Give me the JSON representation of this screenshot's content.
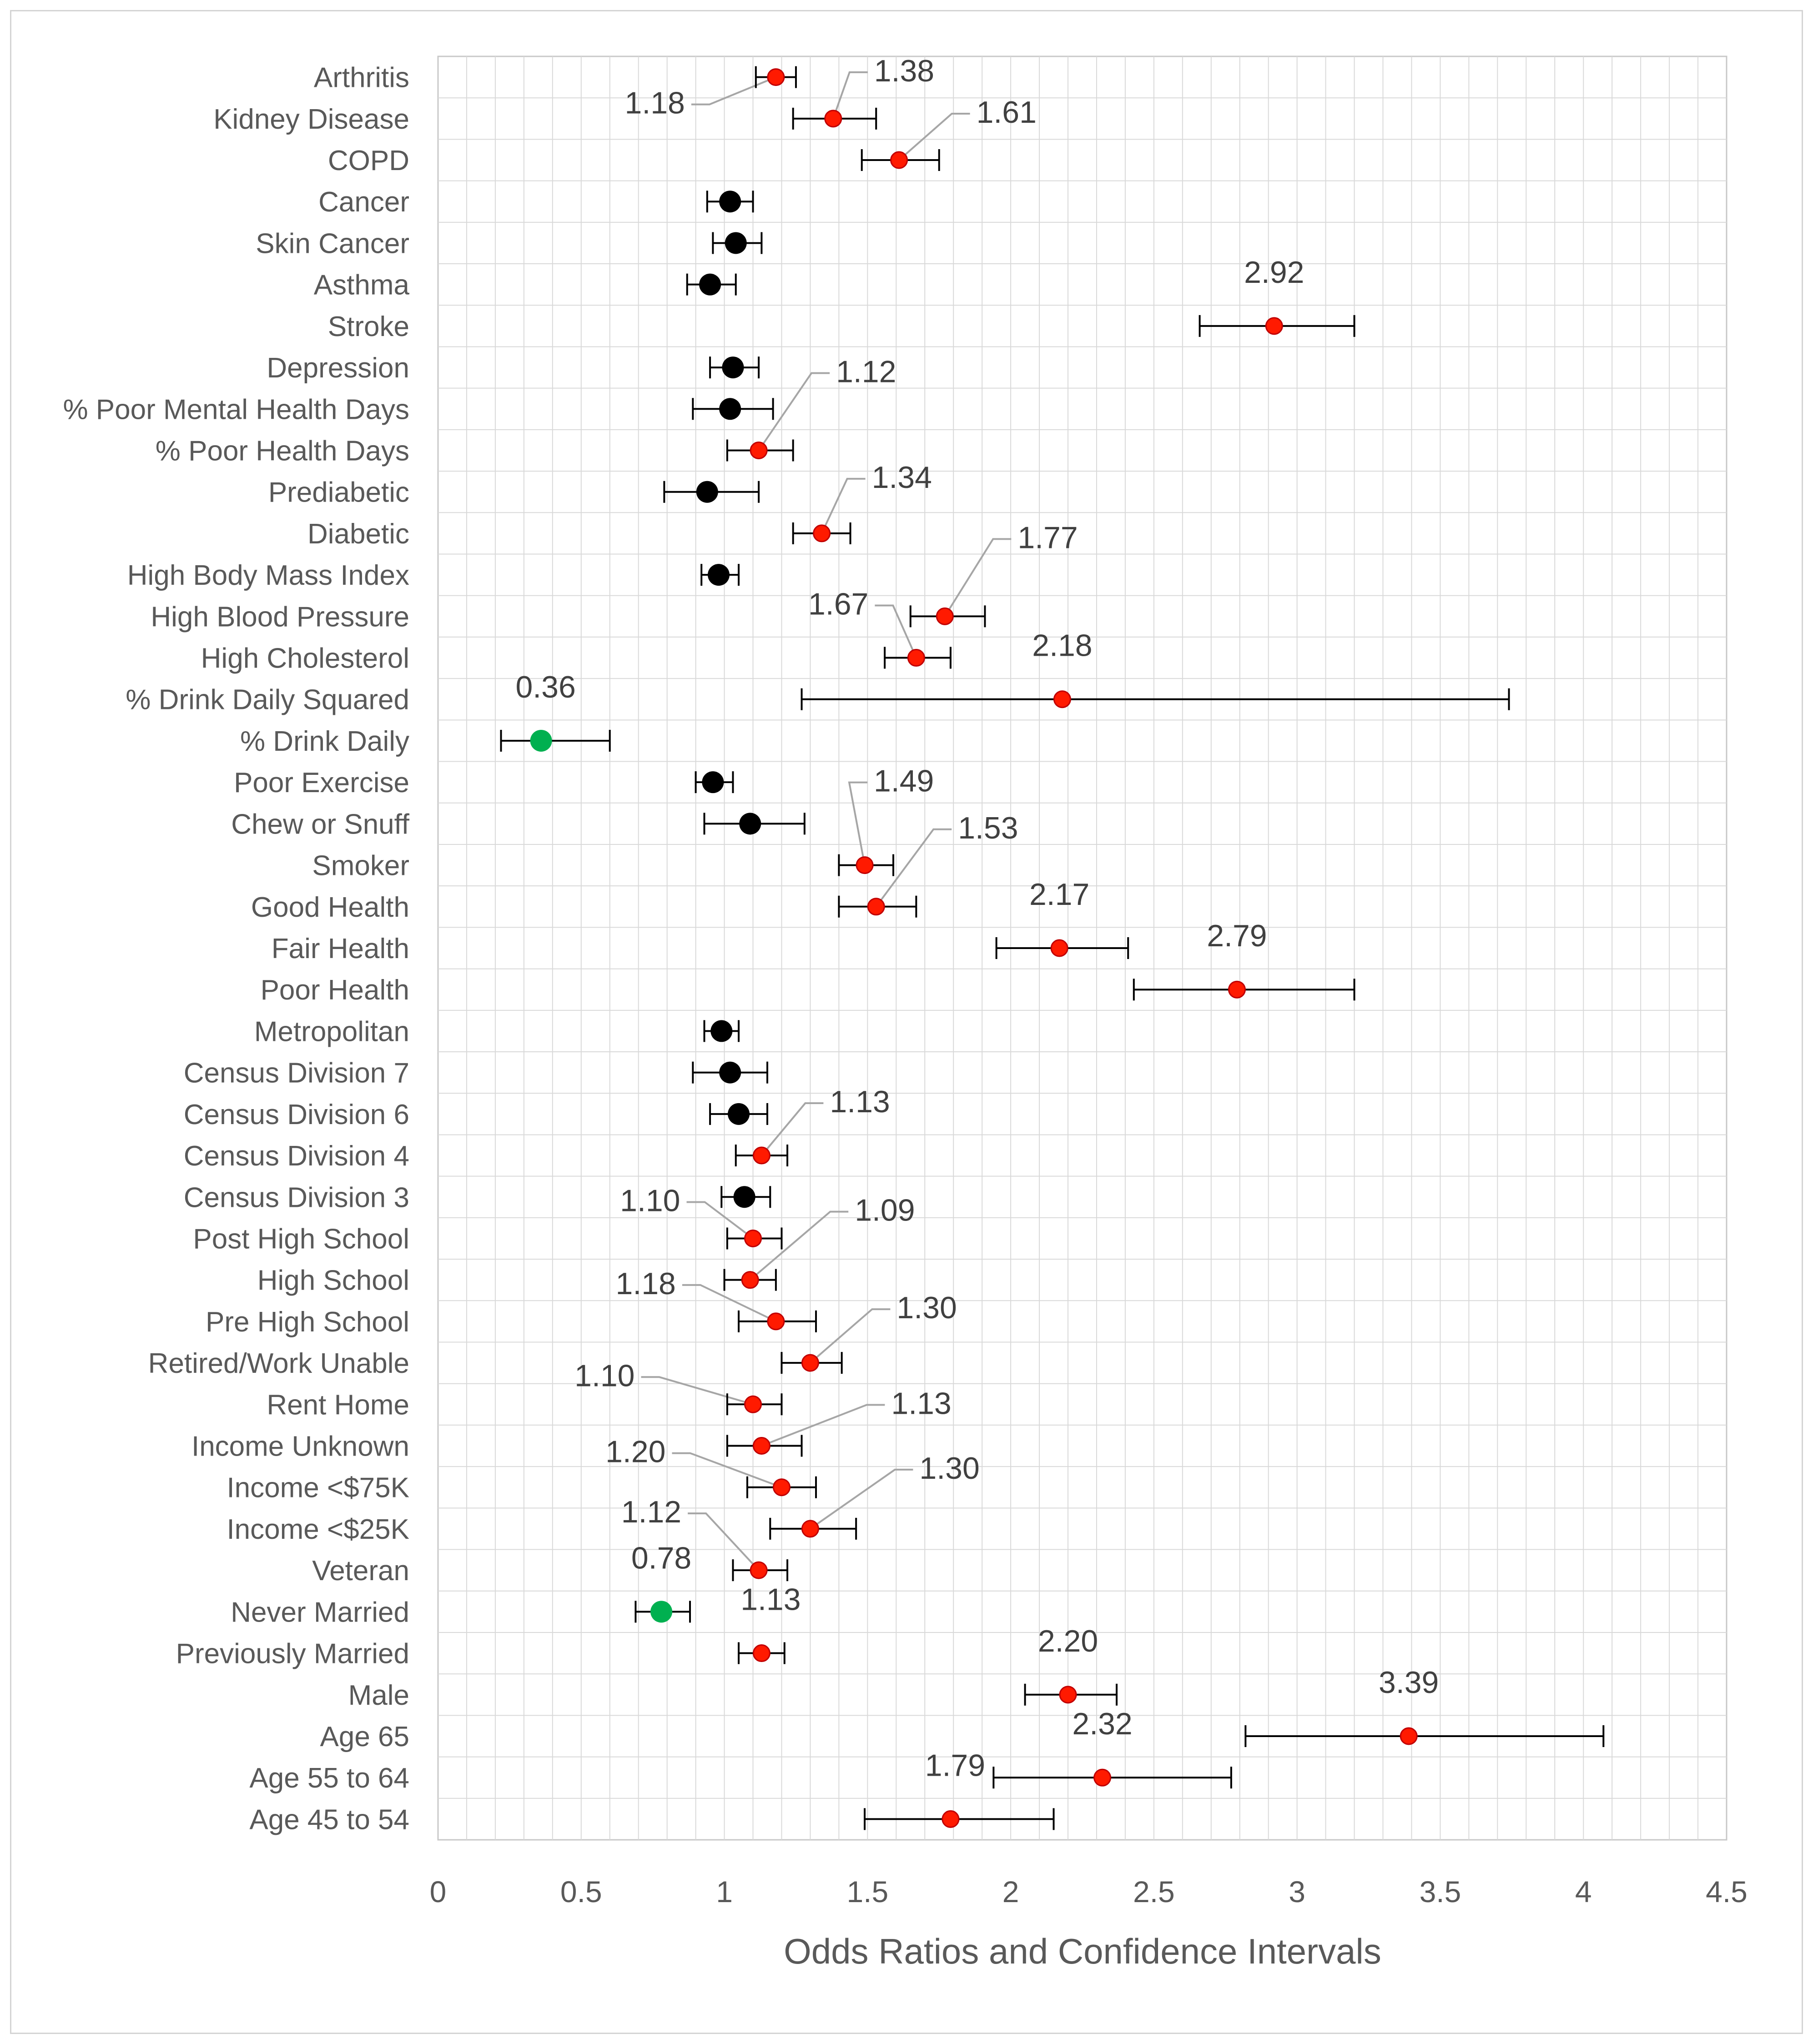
{
  "chart_data": {
    "type": "scatter",
    "title": "",
    "xlabel": "Odds Ratios and Confidence Intervals",
    "ylabel": "",
    "xlim": [
      0,
      4.5
    ],
    "x_ticks": [
      "0",
      "0.5",
      "1",
      "1.5",
      "2",
      "2.5",
      "3",
      "3.5",
      "4",
      "4.5"
    ],
    "grid": true,
    "colors": {
      "significant_high": "#ff1a00",
      "significant_low": "#00b050",
      "not_significant": "#000000"
    },
    "points": [
      {
        "category": "Arthritis",
        "or": 1.18,
        "lo": 1.11,
        "hi": 1.25,
        "sig": "high",
        "label": "1.18"
      },
      {
        "category": "Kidney Disease",
        "or": 1.38,
        "lo": 1.24,
        "hi": 1.53,
        "sig": "high",
        "label": "1.38"
      },
      {
        "category": "COPD",
        "or": 1.61,
        "lo": 1.48,
        "hi": 1.75,
        "sig": "high",
        "label": "1.61"
      },
      {
        "category": "Cancer",
        "or": 1.02,
        "lo": 0.94,
        "hi": 1.1,
        "sig": "none",
        "label": ""
      },
      {
        "category": "Skin Cancer",
        "or": 1.04,
        "lo": 0.96,
        "hi": 1.13,
        "sig": "none",
        "label": ""
      },
      {
        "category": "Asthma",
        "or": 0.95,
        "lo": 0.87,
        "hi": 1.04,
        "sig": "none",
        "label": ""
      },
      {
        "category": "Stroke",
        "or": 2.92,
        "lo": 2.66,
        "hi": 3.2,
        "sig": "high",
        "label": "2.92"
      },
      {
        "category": "Depression",
        "or": 1.03,
        "lo": 0.95,
        "hi": 1.12,
        "sig": "none",
        "label": ""
      },
      {
        "category": "% Poor Mental Health Days",
        "or": 1.02,
        "lo": 0.89,
        "hi": 1.17,
        "sig": "none",
        "label": ""
      },
      {
        "category": "% Poor Health Days",
        "or": 1.12,
        "lo": 1.01,
        "hi": 1.24,
        "sig": "high",
        "label": "1.12"
      },
      {
        "category": "Prediabetic",
        "or": 0.94,
        "lo": 0.79,
        "hi": 1.12,
        "sig": "none",
        "label": ""
      },
      {
        "category": "Diabetic",
        "or": 1.34,
        "lo": 1.24,
        "hi": 1.44,
        "sig": "high",
        "label": "1.34"
      },
      {
        "category": "High Body Mass Index",
        "or": 0.98,
        "lo": 0.92,
        "hi": 1.05,
        "sig": "none",
        "label": ""
      },
      {
        "category": "High Blood Pressure",
        "or": 1.77,
        "lo": 1.65,
        "hi": 1.91,
        "sig": "high",
        "label": "1.77"
      },
      {
        "category": "High Cholesterol",
        "or": 1.67,
        "lo": 1.56,
        "hi": 1.79,
        "sig": "high",
        "label": "1.67"
      },
      {
        "category": "% Drink Daily Squared",
        "or": 2.18,
        "lo": 1.27,
        "hi": 3.74,
        "sig": "high",
        "label": "2.18"
      },
      {
        "category": "% Drink Daily",
        "or": 0.36,
        "lo": 0.22,
        "hi": 0.6,
        "sig": "low",
        "label": "0.36"
      },
      {
        "category": "Poor Exercise",
        "or": 0.96,
        "lo": 0.9,
        "hi": 1.03,
        "sig": "none",
        "label": ""
      },
      {
        "category": "Chew or Snuff",
        "or": 1.09,
        "lo": 0.93,
        "hi": 1.28,
        "sig": "none",
        "label": ""
      },
      {
        "category": "Smoker",
        "or": 1.49,
        "lo": 1.4,
        "hi": 1.59,
        "sig": "high",
        "label": "1.49"
      },
      {
        "category": "Good Health",
        "or": 1.53,
        "lo": 1.4,
        "hi": 1.67,
        "sig": "high",
        "label": "1.53"
      },
      {
        "category": "Fair Health",
        "or": 2.17,
        "lo": 1.95,
        "hi": 2.41,
        "sig": "high",
        "label": "2.17"
      },
      {
        "category": "Poor Health",
        "or": 2.79,
        "lo": 2.43,
        "hi": 3.2,
        "sig": "high",
        "label": "2.79"
      },
      {
        "category": "Metropolitan",
        "or": 0.99,
        "lo": 0.93,
        "hi": 1.05,
        "sig": "none",
        "label": ""
      },
      {
        "category": "Census Division 7",
        "or": 1.02,
        "lo": 0.89,
        "hi": 1.15,
        "sig": "none",
        "label": ""
      },
      {
        "category": "Census Division 6",
        "or": 1.05,
        "lo": 0.95,
        "hi": 1.15,
        "sig": "none",
        "label": ""
      },
      {
        "category": "Census Division 4",
        "or": 1.13,
        "lo": 1.04,
        "hi": 1.22,
        "sig": "high",
        "label": "1.13"
      },
      {
        "category": "Census Division 3",
        "or": 1.07,
        "lo": 0.99,
        "hi": 1.16,
        "sig": "none",
        "label": ""
      },
      {
        "category": "Post High School",
        "or": 1.1,
        "lo": 1.01,
        "hi": 1.2,
        "sig": "high",
        "label": "1.10"
      },
      {
        "category": "High School",
        "or": 1.09,
        "lo": 1.0,
        "hi": 1.18,
        "sig": "high",
        "label": "1.09"
      },
      {
        "category": "Pre High School",
        "or": 1.18,
        "lo": 1.05,
        "hi": 1.32,
        "sig": "high",
        "label": "1.18"
      },
      {
        "category": "Retired/Work Unable",
        "or": 1.3,
        "lo": 1.2,
        "hi": 1.41,
        "sig": "high",
        "label": "1.30"
      },
      {
        "category": "Rent Home",
        "or": 1.1,
        "lo": 1.01,
        "hi": 1.2,
        "sig": "high",
        "label": "1.10"
      },
      {
        "category": "Income Unknown",
        "or": 1.13,
        "lo": 1.01,
        "hi": 1.27,
        "sig": "high",
        "label": "1.13"
      },
      {
        "category": "Income <$75K",
        "or": 1.2,
        "lo": 1.08,
        "hi": 1.32,
        "sig": "high",
        "label": "1.20"
      },
      {
        "category": "Income <$25K",
        "or": 1.3,
        "lo": 1.16,
        "hi": 1.46,
        "sig": "high",
        "label": "1.30"
      },
      {
        "category": "Veteran",
        "or": 1.12,
        "lo": 1.03,
        "hi": 1.22,
        "sig": "high",
        "label": "1.12"
      },
      {
        "category": "Never Married",
        "or": 0.78,
        "lo": 0.69,
        "hi": 0.88,
        "sig": "low",
        "label": "0.78"
      },
      {
        "category": "Previously Married",
        "or": 1.13,
        "lo": 1.05,
        "hi": 1.21,
        "sig": "high",
        "label": "1.13"
      },
      {
        "category": "Male",
        "or": 2.2,
        "lo": 2.05,
        "hi": 2.37,
        "sig": "high",
        "label": "2.20"
      },
      {
        "category": "Age 65",
        "or": 3.39,
        "lo": 2.82,
        "hi": 4.07,
        "sig": "high",
        "label": "3.39"
      },
      {
        "category": "Age 55 to 64",
        "or": 2.32,
        "lo": 1.94,
        "hi": 2.77,
        "sig": "high",
        "label": "2.32"
      },
      {
        "category": "Age 45 to 54",
        "or": 1.79,
        "lo": 1.49,
        "hi": 2.15,
        "sig": "high",
        "label": "1.79"
      }
    ]
  }
}
